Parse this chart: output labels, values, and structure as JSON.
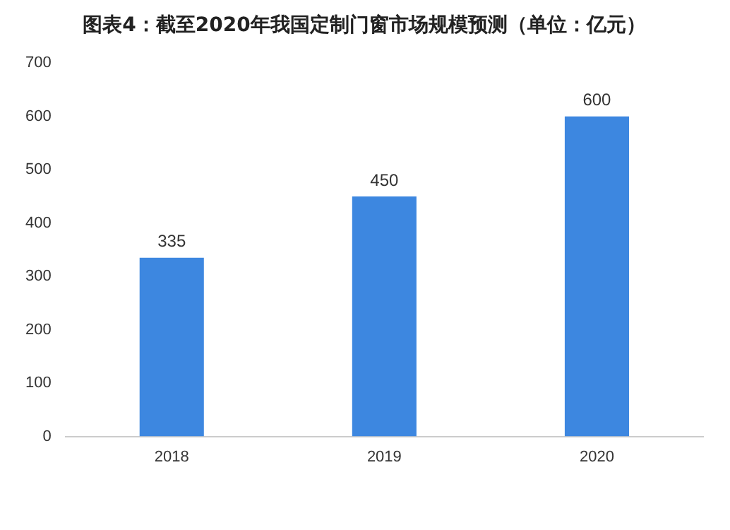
{
  "chart_data": {
    "type": "bar",
    "title": "图表4：截至2020年我国定制门窗市场规模预测（单位：亿元）",
    "categories": [
      "2018",
      "2019",
      "2020"
    ],
    "values": [
      335,
      450,
      600
    ],
    "color": "#3d87e0",
    "ylim": [
      0,
      700
    ],
    "yticks": [
      0,
      100,
      200,
      300,
      400,
      500,
      600,
      700
    ],
    "grid": false,
    "data_labels": true
  }
}
